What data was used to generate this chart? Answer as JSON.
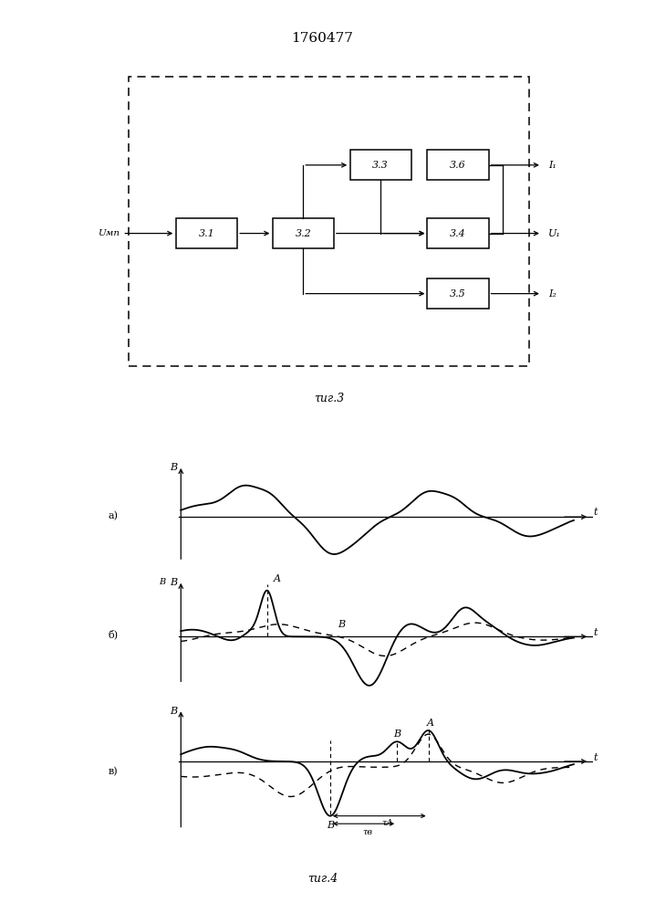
{
  "title": "1760477",
  "fig3_caption": "τиг.3",
  "fig4_caption": "τиг.4",
  "bg_color": "#ffffff",
  "line_color": "#000000",
  "input_label": "Uмп",
  "output_labels": [
    "I₁",
    "U₁",
    "I₂"
  ],
  "subplot_a_label": "а)",
  "subplot_b_label": "б)",
  "subplot_v_label": "в)",
  "y_label": "B",
  "x_label": "t",
  "tau_b_label": "τв",
  "tau_a_label": "τА"
}
